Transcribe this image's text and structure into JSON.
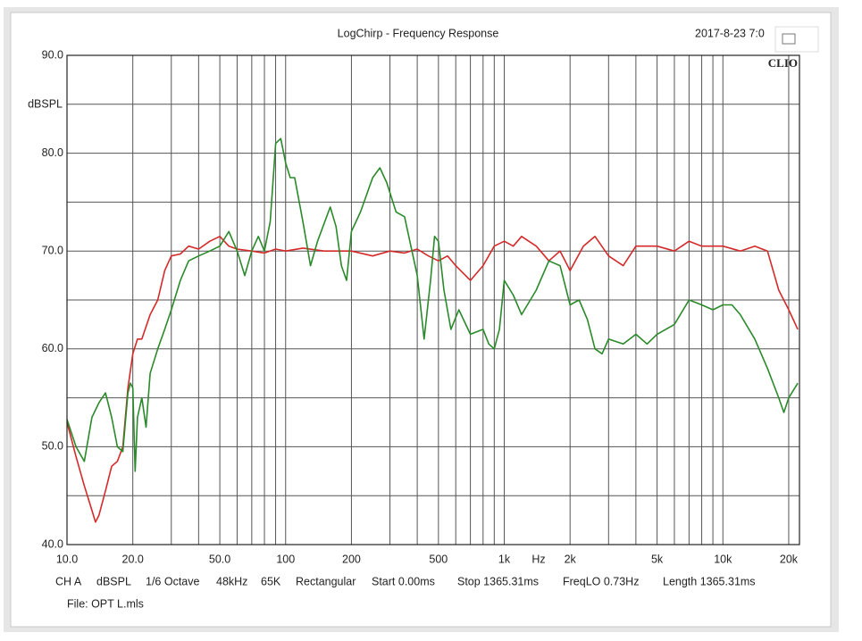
{
  "chart_data": {
    "type": "line",
    "title": "LogChirp - Frequency Response",
    "date": "2017-8-23 7:0",
    "logo": "CLIO",
    "y_label": "dBSPL",
    "x_label": "Hz",
    "xlog": true,
    "grid": true,
    "xlim": [
      10,
      22400
    ],
    "ylim": [
      40,
      90
    ],
    "yticks": [
      {
        "value": 40,
        "label": "40.0"
      },
      {
        "value": 50,
        "label": "50.0"
      },
      {
        "value": 60,
        "label": "60.0"
      },
      {
        "value": 70,
        "label": "70.0"
      },
      {
        "value": 80,
        "label": "80.0"
      },
      {
        "value": 90,
        "label": "90.0"
      }
    ],
    "y_minor_grid": [
      45,
      55,
      65,
      75,
      85
    ],
    "xticks": [
      {
        "value": 10,
        "label": "10.0"
      },
      {
        "value": 20,
        "label": "20.0"
      },
      {
        "value": 50,
        "label": "50.0"
      },
      100,
      200,
      500,
      {
        "value": 1000,
        "label": "1k"
      },
      {
        "value": 2000,
        "label": "2k"
      },
      {
        "value": 5000,
        "label": "5k"
      },
      {
        "value": 10000,
        "label": "10k"
      },
      {
        "value": 20000,
        "label": "20k"
      }
    ],
    "x_minor_grid": [
      30,
      40,
      60,
      70,
      80,
      90,
      300,
      400,
      600,
      700,
      800,
      900,
      3000,
      4000,
      6000,
      7000,
      8000,
      9000
    ],
    "series": [
      {
        "name": "Red trace",
        "color": "#d42a2a",
        "x": [
          10,
          11,
          12,
          13,
          13.5,
          14,
          15,
          16,
          17,
          18,
          19,
          20,
          21,
          22,
          24,
          26,
          28,
          30,
          33,
          36,
          40,
          45,
          50,
          55,
          60,
          70,
          80,
          90,
          100,
          120,
          150,
          200,
          250,
          300,
          350,
          400,
          450,
          500,
          550,
          600,
          700,
          800,
          900,
          1000,
          1100,
          1200,
          1400,
          1600,
          1800,
          2000,
          2300,
          2600,
          3000,
          3500,
          4000,
          5000,
          6000,
          7000,
          8000,
          10000,
          12000,
          14000,
          16000,
          18000,
          20000,
          22000
        ],
        "values": [
          52.5,
          49,
          46,
          43.5,
          42.3,
          43,
          45.5,
          48,
          48.5,
          50,
          56,
          59.5,
          61,
          61,
          63.5,
          65,
          68,
          69.5,
          69.7,
          70.5,
          70.2,
          71,
          71.5,
          70.5,
          70.2,
          70,
          69.8,
          70.2,
          70,
          70.3,
          70,
          70,
          69.5,
          70,
          69.8,
          70.2,
          69.5,
          69,
          69.5,
          68.5,
          67,
          68.5,
          70.5,
          71,
          70.5,
          71.5,
          70.5,
          69,
          70,
          68,
          70.5,
          71.5,
          69.5,
          68.5,
          70.5,
          70.5,
          70,
          71,
          70.5,
          70.5,
          70,
          70.5,
          70,
          66,
          64,
          62
        ]
      },
      {
        "name": "Green trace",
        "color": "#2a8a2a",
        "x": [
          10,
          11,
          12,
          13,
          14,
          15,
          16,
          17,
          18,
          19,
          19.5,
          20,
          20.5,
          21,
          22,
          23,
          24,
          26,
          28,
          30,
          33,
          36,
          40,
          45,
          50,
          55,
          60,
          65,
          70,
          75,
          80,
          85,
          90,
          95,
          100,
          105,
          110,
          120,
          130,
          140,
          160,
          170,
          180,
          190,
          200,
          220,
          250,
          270,
          290,
          320,
          350,
          400,
          430,
          460,
          480,
          500,
          530,
          570,
          620,
          700,
          800,
          850,
          900,
          950,
          1000,
          1100,
          1200,
          1400,
          1600,
          1800,
          2000,
          2200,
          2400,
          2600,
          2800,
          3000,
          3500,
          4000,
          4500,
          5000,
          6000,
          7000,
          8000,
          9000,
          10000,
          11000,
          12000,
          14000,
          16000,
          18000,
          19000,
          20000,
          22000
        ],
        "values": [
          52.8,
          50,
          48.5,
          53,
          54.5,
          55.5,
          53,
          50,
          49.5,
          55.5,
          56.5,
          56,
          47.5,
          53,
          55,
          52,
          57.5,
          60,
          62,
          64,
          67,
          69,
          69.5,
          70,
          70.5,
          72,
          70,
          67.5,
          70,
          71.5,
          70,
          73,
          81,
          81.5,
          79,
          77.5,
          77.5,
          73,
          68.5,
          71,
          74.5,
          72.5,
          68.5,
          67,
          72,
          74,
          77.5,
          78.5,
          77,
          74,
          73.5,
          67.5,
          61,
          67,
          71.5,
          71,
          66,
          62,
          64,
          61.5,
          62,
          60.5,
          60,
          62,
          67,
          65.5,
          63.5,
          66,
          69,
          68.5,
          64.5,
          65,
          63,
          60,
          59.5,
          61,
          60.5,
          61.5,
          60.5,
          61.5,
          62.5,
          65,
          64.5,
          64,
          64.5,
          64.5,
          63.5,
          61,
          58,
          55,
          53.5,
          55,
          56.5
        ]
      }
    ],
    "settings": [
      "CH A",
      "dBSPL",
      "1/6 Octave",
      "48kHz",
      "65K",
      "Rectangular",
      "Start 0.00ms",
      "Stop 1365.31ms",
      "FreqLO 0.73Hz",
      "Length 1365.31ms"
    ],
    "file": "File: OPT L.mls"
  }
}
